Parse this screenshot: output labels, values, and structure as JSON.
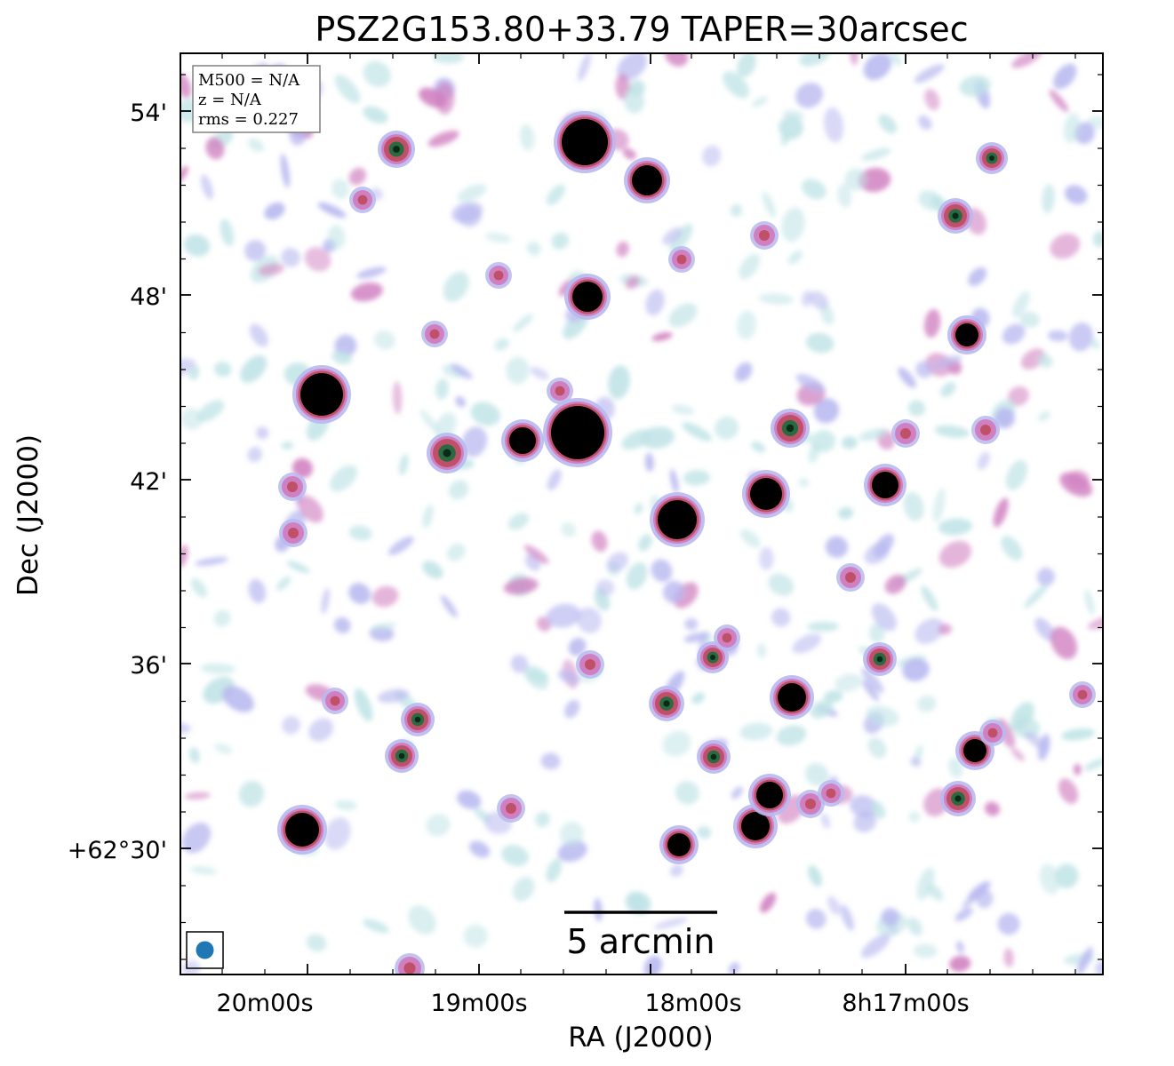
{
  "title": "PSZ2G153.80+33.79 TAPER=30arcsec",
  "xlabel": "RA (J2000)",
  "ylabel": "Dec (J2000)",
  "info": {
    "mass": "M500 = N/A",
    "redshift": "z = N/A",
    "rms": "rms = 0.227"
  },
  "scale_bar": "5 arcmin",
  "x_ticks": [
    "20m00s",
    "19m00s",
    "18m00s",
    "8h17m00s"
  ],
  "y_ticks": [
    "54'",
    "48'",
    "42'",
    "36'",
    "+62°30'"
  ],
  "colors": {
    "faint": "#bfe3e6",
    "low": "#b8b8f0",
    "mid": "#d080c0",
    "high": "#c05068",
    "peak": "#2a6a40",
    "core": "#000000",
    "beam": "#1f77b4"
  }
}
